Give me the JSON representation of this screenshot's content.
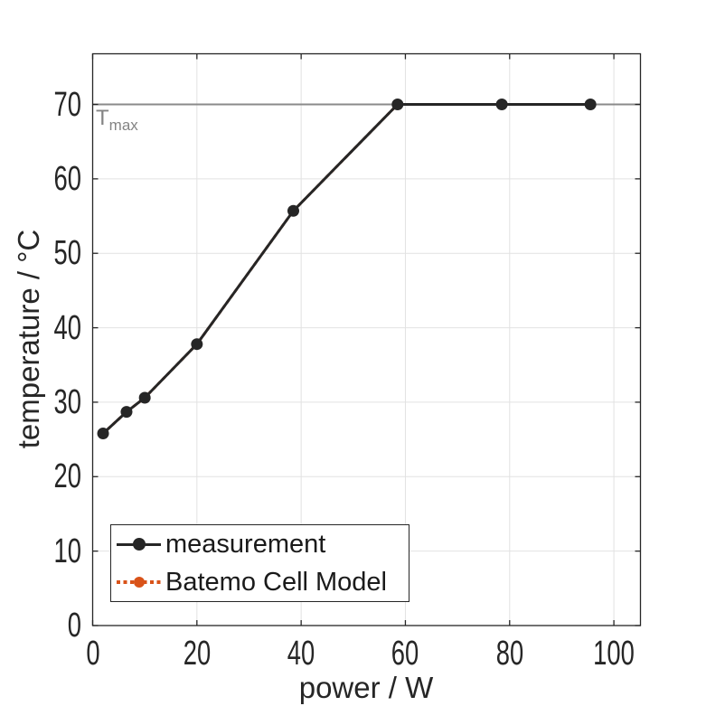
{
  "figure": {
    "background": "#ffffff"
  },
  "axes": {
    "xlabel": "power / W",
    "ylabel": "temperature / °C",
    "x_tick_labels": [
      "0",
      "20",
      "40",
      "60",
      "80",
      "100"
    ],
    "y_tick_labels": [
      "0",
      "10",
      "20",
      "30",
      "40",
      "50",
      "60",
      "70"
    ]
  },
  "annotations": {
    "tmax": {
      "text": "T",
      "subscript": "max",
      "y_value": 70,
      "line_color": "#8a8a8a",
      "text_color": "#848484"
    }
  },
  "legend": {
    "items": [
      {
        "label": "measurement",
        "color": "#262626",
        "line_style": "solid",
        "marker": "filled-circle"
      },
      {
        "label": "Batemo Cell Model",
        "color": "#d95319",
        "line_style": "dotted",
        "marker": "filled-circle"
      }
    ]
  },
  "chart_data": {
    "type": "line",
    "title": "",
    "xlabel": "power / W",
    "ylabel": "temperature / °C",
    "xlim": [
      0,
      105.1
    ],
    "ylim": [
      0,
      76.8
    ],
    "xticks": [
      0,
      20,
      40,
      60,
      80,
      100
    ],
    "yticks": [
      0,
      10,
      20,
      30,
      40,
      50,
      60,
      70
    ],
    "grid": true,
    "legend_position": "lower-left-inside",
    "x": [
      2,
      6.5,
      10,
      20,
      38.5,
      58.5,
      78.5,
      95.5
    ],
    "series": [
      {
        "name": "measurement",
        "color": "#262626",
        "line_style": "solid",
        "marker": "circle",
        "values": [
          25.8,
          28.7,
          30.6,
          37.8,
          55.7,
          70,
          70,
          70
        ]
      },
      {
        "name": "Batemo Cell Model",
        "color": "#d95319",
        "line_style": "dotted",
        "marker": "circle",
        "values": [
          25.8,
          28.7,
          30.6,
          37.8,
          55.7,
          70,
          70,
          70
        ]
      }
    ],
    "annotations": [
      {
        "type": "hline",
        "y": 70,
        "label": "T_max"
      }
    ]
  },
  "colors": {
    "grid": "#e2e2e2",
    "axis": "#262626",
    "tick_text": "#262626",
    "label_text": "#262626"
  }
}
